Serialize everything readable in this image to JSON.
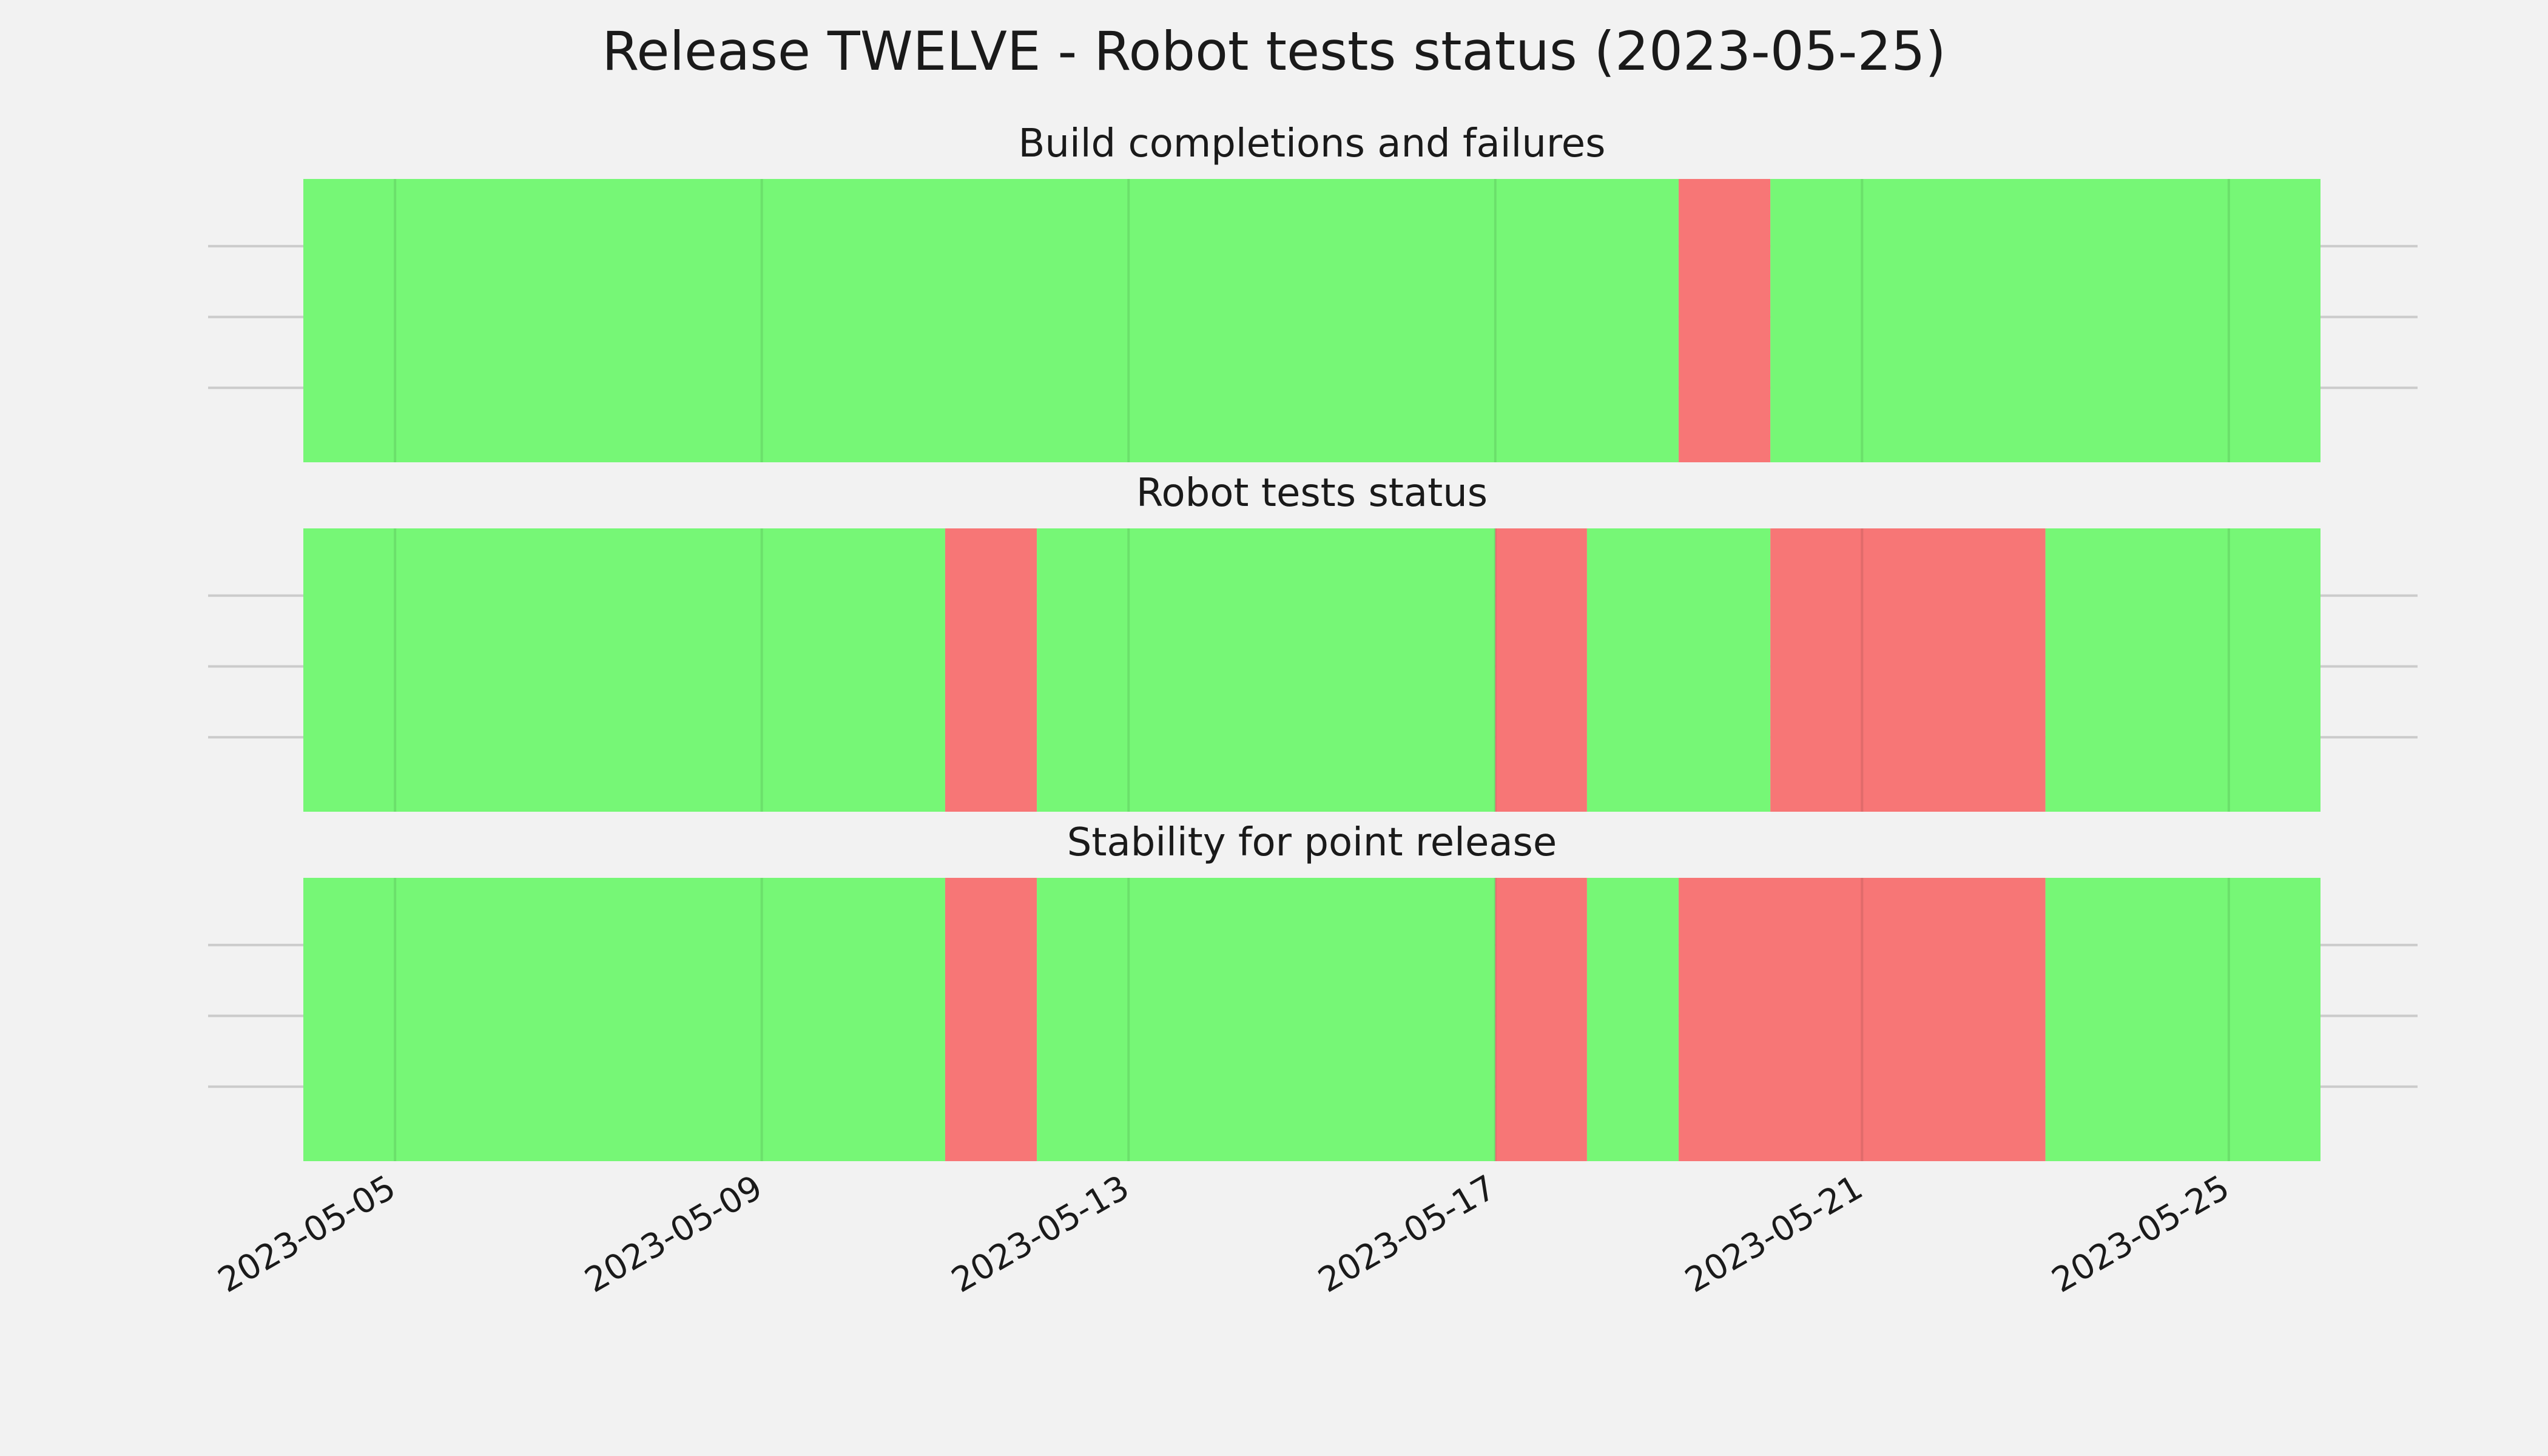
{
  "figure": {
    "title": "Release TWELVE - Robot tests status (2023-05-25)"
  },
  "colors": {
    "pass": "#76f776",
    "fail": "#f77676",
    "background": "#f2f2f2",
    "grid": "#cbcbcb"
  },
  "chart_data": {
    "type": "bar",
    "orientation": "timeline",
    "x_axis": {
      "type": "date",
      "range": [
        "2023-05-04",
        "2023-05-26"
      ],
      "ticks": [
        "2023-05-05",
        "2023-05-09",
        "2023-05-13",
        "2023-05-17",
        "2023-05-21",
        "2023-05-25"
      ],
      "tick_label_rotation": 30
    },
    "grid": true,
    "legend": "none",
    "panels": [
      {
        "title": "Build completions and failures",
        "segments": [
          {
            "start": "2023-05-04",
            "end": "2023-05-19",
            "status": "pass"
          },
          {
            "start": "2023-05-19",
            "end": "2023-05-20",
            "status": "fail"
          },
          {
            "start": "2023-05-20",
            "end": "2023-05-26",
            "status": "pass"
          }
        ]
      },
      {
        "title": "Robot tests status",
        "segments": [
          {
            "start": "2023-05-04",
            "end": "2023-05-11",
            "status": "pass"
          },
          {
            "start": "2023-05-11",
            "end": "2023-05-12",
            "status": "fail"
          },
          {
            "start": "2023-05-12",
            "end": "2023-05-17",
            "status": "pass"
          },
          {
            "start": "2023-05-17",
            "end": "2023-05-18",
            "status": "fail"
          },
          {
            "start": "2023-05-18",
            "end": "2023-05-20",
            "status": "pass"
          },
          {
            "start": "2023-05-20",
            "end": "2023-05-23",
            "status": "fail"
          },
          {
            "start": "2023-05-23",
            "end": "2023-05-26",
            "status": "pass"
          }
        ]
      },
      {
        "title": "Stability for point release",
        "segments": [
          {
            "start": "2023-05-04",
            "end": "2023-05-11",
            "status": "pass"
          },
          {
            "start": "2023-05-11",
            "end": "2023-05-12",
            "status": "fail"
          },
          {
            "start": "2023-05-12",
            "end": "2023-05-17",
            "status": "pass"
          },
          {
            "start": "2023-05-17",
            "end": "2023-05-18",
            "status": "fail"
          },
          {
            "start": "2023-05-18",
            "end": "2023-05-19",
            "status": "pass"
          },
          {
            "start": "2023-05-19",
            "end": "2023-05-23",
            "status": "fail"
          },
          {
            "start": "2023-05-23",
            "end": "2023-05-26",
            "status": "pass"
          }
        ]
      }
    ]
  }
}
